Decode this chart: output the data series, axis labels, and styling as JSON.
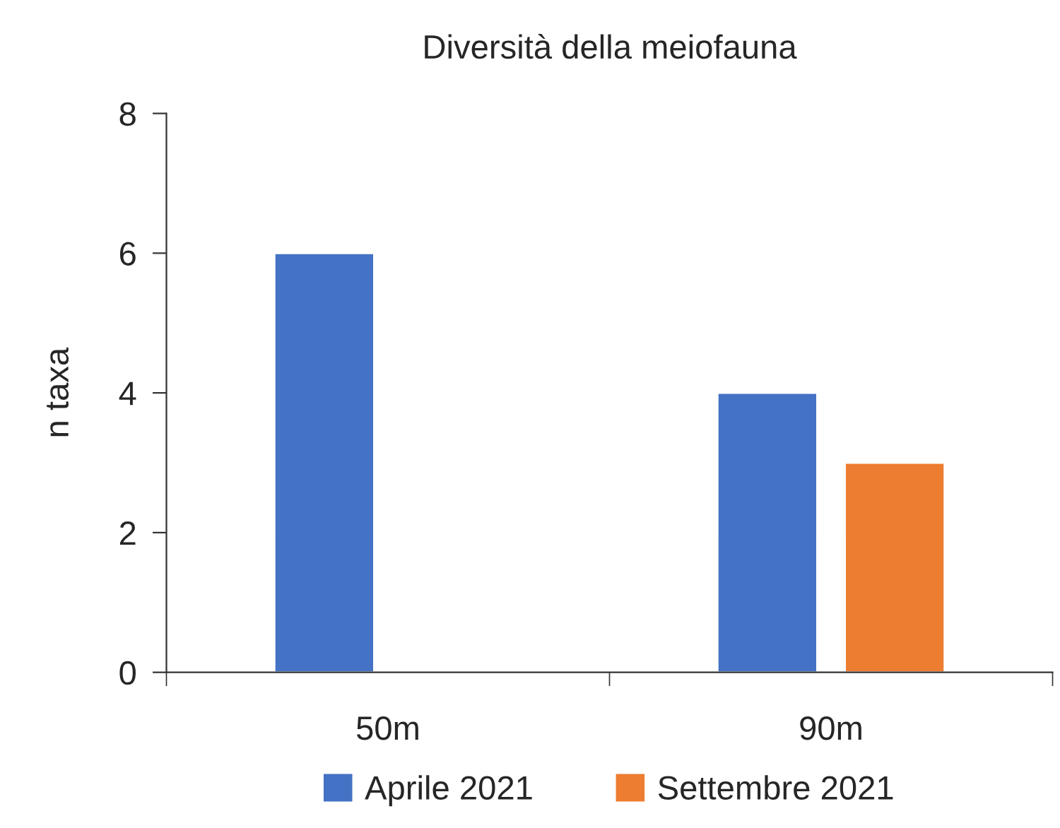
{
  "chart_data": {
    "type": "bar",
    "title": "Diversità della meiofauna",
    "ylabel": "n taxa",
    "categories": [
      "50m",
      "90m"
    ],
    "series": [
      {
        "name": "Aprile 2021",
        "color": "#4472c4",
        "values": [
          6,
          4
        ]
      },
      {
        "name": "Settembre 2021",
        "color": "#ed7d31",
        "values": [
          null,
          3
        ]
      }
    ],
    "ylim": [
      0,
      8
    ],
    "yticks": [
      0,
      2,
      4,
      6,
      8
    ],
    "grid": false,
    "legend": "bottom"
  }
}
